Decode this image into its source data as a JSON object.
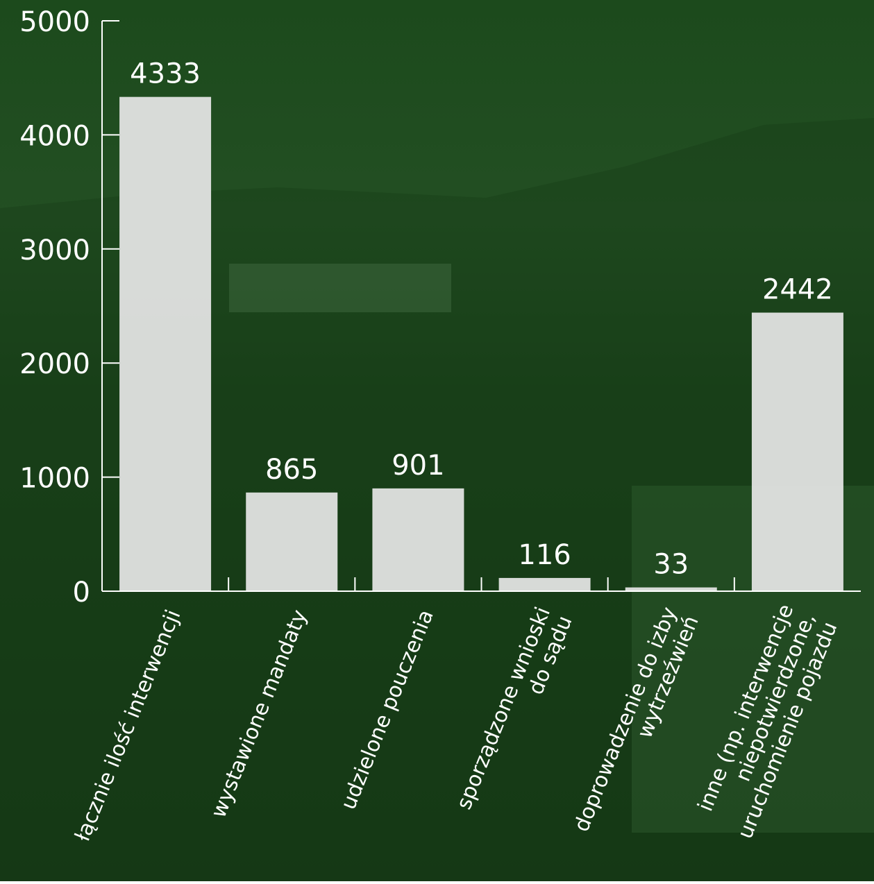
{
  "chart_data": {
    "type": "bar",
    "categories": [
      [
        "łącznie ilość interwencji"
      ],
      [
        "wystawione mandaty"
      ],
      [
        "udzielone pouczenia"
      ],
      [
        "sporządzone wnioski",
        "do sądu"
      ],
      [
        "doprowadzenie do izby",
        "wytrzeźwień"
      ],
      [
        "inne (np. interwencje",
        "niepotwierdzone,",
        "uruchomienie pojazdu"
      ]
    ],
    "values": [
      4333,
      865,
      901,
      116,
      33,
      2442
    ],
    "color": "#e6e6e6",
    "ylim": [
      0,
      5000
    ],
    "yticks": [
      0,
      1000,
      2000,
      3000,
      4000,
      5000
    ]
  }
}
